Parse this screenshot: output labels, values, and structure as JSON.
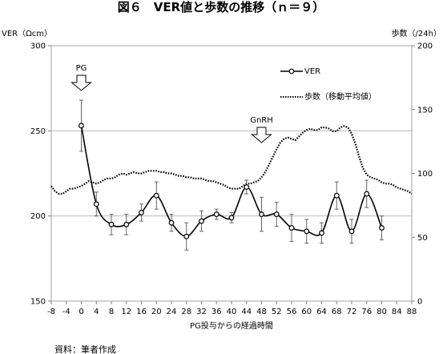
{
  "chart_data": {
    "type": "line",
    "title": "図６　VER値と歩数の推移（ｎ＝９）",
    "xlabel": "PG投与からの経過時間",
    "ylabel_left": "VER（Ωcm）",
    "ylabel_right": "歩数（/24h）",
    "x_ticks": [
      -8,
      -4,
      0,
      4,
      8,
      12,
      16,
      20,
      24,
      28,
      32,
      36,
      40,
      44,
      48,
      52,
      56,
      60,
      64,
      68,
      72,
      76,
      80,
      84,
      88
    ],
    "x_tick_labels": [
      "-8",
      "-4",
      "0",
      "4",
      "8",
      "12",
      "16",
      "20",
      "24",
      "28",
      "32",
      "36",
      "40",
      "44",
      "48",
      "52",
      "56",
      "60",
      "64",
      "68",
      "72",
      "76",
      "80",
      "84",
      "88"
    ],
    "xlim": [
      -8,
      88
    ],
    "ylim_left": [
      150,
      300
    ],
    "y_ticks_left": [
      150,
      200,
      250,
      300
    ],
    "y_tick_labels_left": [
      "150",
      "200",
      "250",
      "300"
    ],
    "ylim_right": [
      0,
      200
    ],
    "y_ticks_right": [
      0,
      50,
      100,
      150,
      200
    ],
    "y_tick_labels_right": [
      "0",
      "50",
      "100",
      "150",
      "200"
    ],
    "grid": true,
    "legend_position": "top-right",
    "series": [
      {
        "name": "VER",
        "axis": "left",
        "style": "solid-line-circle-markers",
        "x": [
          0,
          4,
          8,
          12,
          16,
          20,
          24,
          28,
          32,
          36,
          40,
          44,
          48,
          52,
          56,
          60,
          64,
          68,
          72,
          76,
          80
        ],
        "y": [
          253,
          207,
          195,
          195,
          202,
          212,
          196,
          188,
          197,
          201,
          199,
          217,
          201,
          201,
          193,
          191,
          190,
          212,
          191,
          213,
          193
        ],
        "err": [
          15,
          7,
          6,
          6,
          5,
          8,
          5,
          8,
          6,
          3,
          3,
          4,
          10,
          7,
          8,
          7,
          6,
          8,
          7,
          8,
          7
        ]
      },
      {
        "name": "歩数（移動平均値）",
        "axis": "right",
        "style": "dotted-line",
        "x": [
          -8,
          -7,
          -6,
          -5,
          -4,
          -3,
          -2,
          -1,
          0,
          1,
          2,
          3,
          4,
          5,
          6,
          7,
          8,
          9,
          10,
          11,
          12,
          13,
          14,
          15,
          16,
          17,
          18,
          19,
          20,
          21,
          22,
          23,
          24,
          25,
          26,
          27,
          28,
          29,
          30,
          31,
          32,
          33,
          34,
          35,
          36,
          37,
          38,
          39,
          40,
          41,
          42,
          43,
          44,
          45,
          46,
          47,
          48,
          49,
          50,
          51,
          52,
          53,
          54,
          55,
          56,
          57,
          58,
          59,
          60,
          61,
          62,
          63,
          64,
          65,
          66,
          67,
          68,
          69,
          70,
          71,
          72,
          73,
          74,
          75,
          76,
          77,
          78,
          79,
          80,
          81,
          82,
          83,
          84,
          85,
          86,
          87,
          88
        ],
        "y": [
          90,
          86,
          84,
          84,
          86,
          88,
          88,
          89,
          90,
          92,
          94,
          93,
          92,
          93,
          95,
          96,
          96,
          97,
          99,
          100,
          99,
          100,
          101,
          100,
          100,
          101,
          102,
          102,
          102,
          101,
          101,
          100,
          100,
          99,
          98,
          98,
          97,
          97,
          96,
          96,
          96,
          95,
          94,
          94,
          93,
          92,
          91,
          89,
          88,
          88,
          88,
          90,
          92,
          92,
          93,
          94,
          97,
          101,
          107,
          113,
          119,
          124,
          127,
          128,
          127,
          126,
          129,
          132,
          134,
          135,
          134,
          134,
          136,
          136,
          135,
          133,
          133,
          136,
          137,
          136,
          131,
          123,
          113,
          104,
          99,
          97,
          96,
          95,
          93,
          92,
          92,
          91,
          89,
          88,
          87,
          86,
          84
        ]
      }
    ],
    "annotations": [
      {
        "label": "PG",
        "x": 0
      },
      {
        "label": "GnRH",
        "x": 48
      }
    ]
  },
  "source_note": "資料：筆者作成"
}
